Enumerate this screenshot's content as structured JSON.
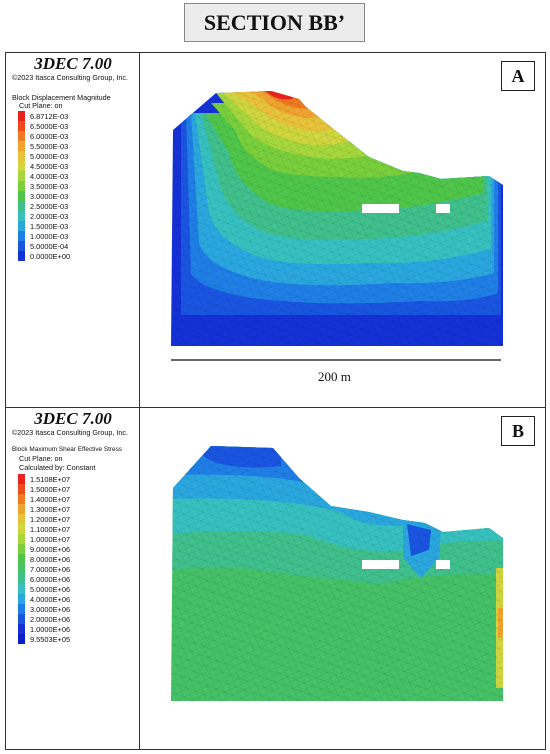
{
  "section_title": "SECTION BB’",
  "panels": [
    {
      "letter": "A",
      "software": "3DEC 7.00",
      "copyright": "©2023 Itasca Consulting Group, Inc.",
      "legend_title": "Block  Displacement Magnitude",
      "legend_sub": [
        "Cut Plane: on"
      ],
      "legend": [
        {
          "label": "6.8712E-03",
          "color": "#e8231f"
        },
        {
          "label": "6.5000E-03",
          "color": "#ee4a1c"
        },
        {
          "label": "6.0000E-03",
          "color": "#f07a22"
        },
        {
          "label": "5.5000E-03",
          "color": "#f0a430"
        },
        {
          "label": "5.0000E-03",
          "color": "#e8c33a"
        },
        {
          "label": "4.5000E-03",
          "color": "#cfd63e"
        },
        {
          "label": "4.0000E-03",
          "color": "#a6d83d"
        },
        {
          "label": "3.5000E-03",
          "color": "#79cf3c"
        },
        {
          "label": "3.0000E-03",
          "color": "#4fc64a"
        },
        {
          "label": "2.5000E-03",
          "color": "#3fc08c"
        },
        {
          "label": "2.0000E-03",
          "color": "#36c1c0"
        },
        {
          "label": "1.5000E-03",
          "color": "#2aa7df"
        },
        {
          "label": "1.0000E-03",
          "color": "#1f7fe6"
        },
        {
          "label": "5.0000E-04",
          "color": "#1a55e2"
        },
        {
          "label": "0.0000E+00",
          "color": "#1431d8"
        }
      ],
      "scale_label": "200 m"
    },
    {
      "letter": "B",
      "software": "3DEC 7.00",
      "copyright": "©2023 Itasca Consulting Group, Inc.",
      "legend_title": "Block  Maximum Shear Effective Stress",
      "legend_sub": [
        "Cut Plane: on",
        "Calculated by: Constant"
      ],
      "legend": [
        {
          "label": "1.5108E+07",
          "color": "#e8231f"
        },
        {
          "label": "1.5000E+07",
          "color": "#ee4a1c"
        },
        {
          "label": "1.4000E+07",
          "color": "#f07a22"
        },
        {
          "label": "1.3000E+07",
          "color": "#f0a430"
        },
        {
          "label": "1.2000E+07",
          "color": "#e8c33a"
        },
        {
          "label": "1.1000E+07",
          "color": "#cfd63e"
        },
        {
          "label": "1.0000E+07",
          "color": "#a6d83d"
        },
        {
          "label": "9.0000E+06",
          "color": "#79cf3c"
        },
        {
          "label": "8.0000E+06",
          "color": "#4fc64a"
        },
        {
          "label": "7.0000E+06",
          "color": "#45c167"
        },
        {
          "label": "6.0000E+06",
          "color": "#3fc08c"
        },
        {
          "label": "5.0000E+06",
          "color": "#36c1c0"
        },
        {
          "label": "4.0000E+06",
          "color": "#2aa7df"
        },
        {
          "label": "3.0000E+06",
          "color": "#1f7fe6"
        },
        {
          "label": "2.0000E+06",
          "color": "#1a55e2"
        },
        {
          "label": "1.0000E+06",
          "color": "#1431d8"
        },
        {
          "label": "9.5503E+05",
          "color": "#0f1fc8"
        }
      ]
    }
  ]
}
